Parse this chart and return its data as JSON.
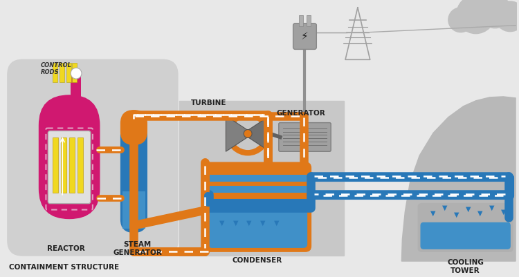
{
  "bg_color": "#e8e8e8",
  "containment_bg": "#d0d0d0",
  "secondary_bg": "#c8c8c8",
  "reactor_color": "#d01870",
  "orange_color": "#e07818",
  "blue_color": "#2878b8",
  "blue_mid": "#4090c8",
  "gray_gen": "#909090",
  "gray_dark": "#707070",
  "yellow_rod": "#f0d820",
  "white": "#ffffff",
  "tower_gray": "#b8b8b8",
  "cloud_gray": "#c0c0c0",
  "title_text": "CONTAINMENT STRUCTURE",
  "turbine_label": "TURBINE",
  "generator_label": "GENERATOR",
  "condenser_label": "CONDENSER",
  "steam_gen_label": "STEAM\nGENERATOR",
  "reactor_label": "REACTOR",
  "cooling_label": "COOLING\nTOWER",
  "control_rods_label": "CONTROL\nRODS"
}
